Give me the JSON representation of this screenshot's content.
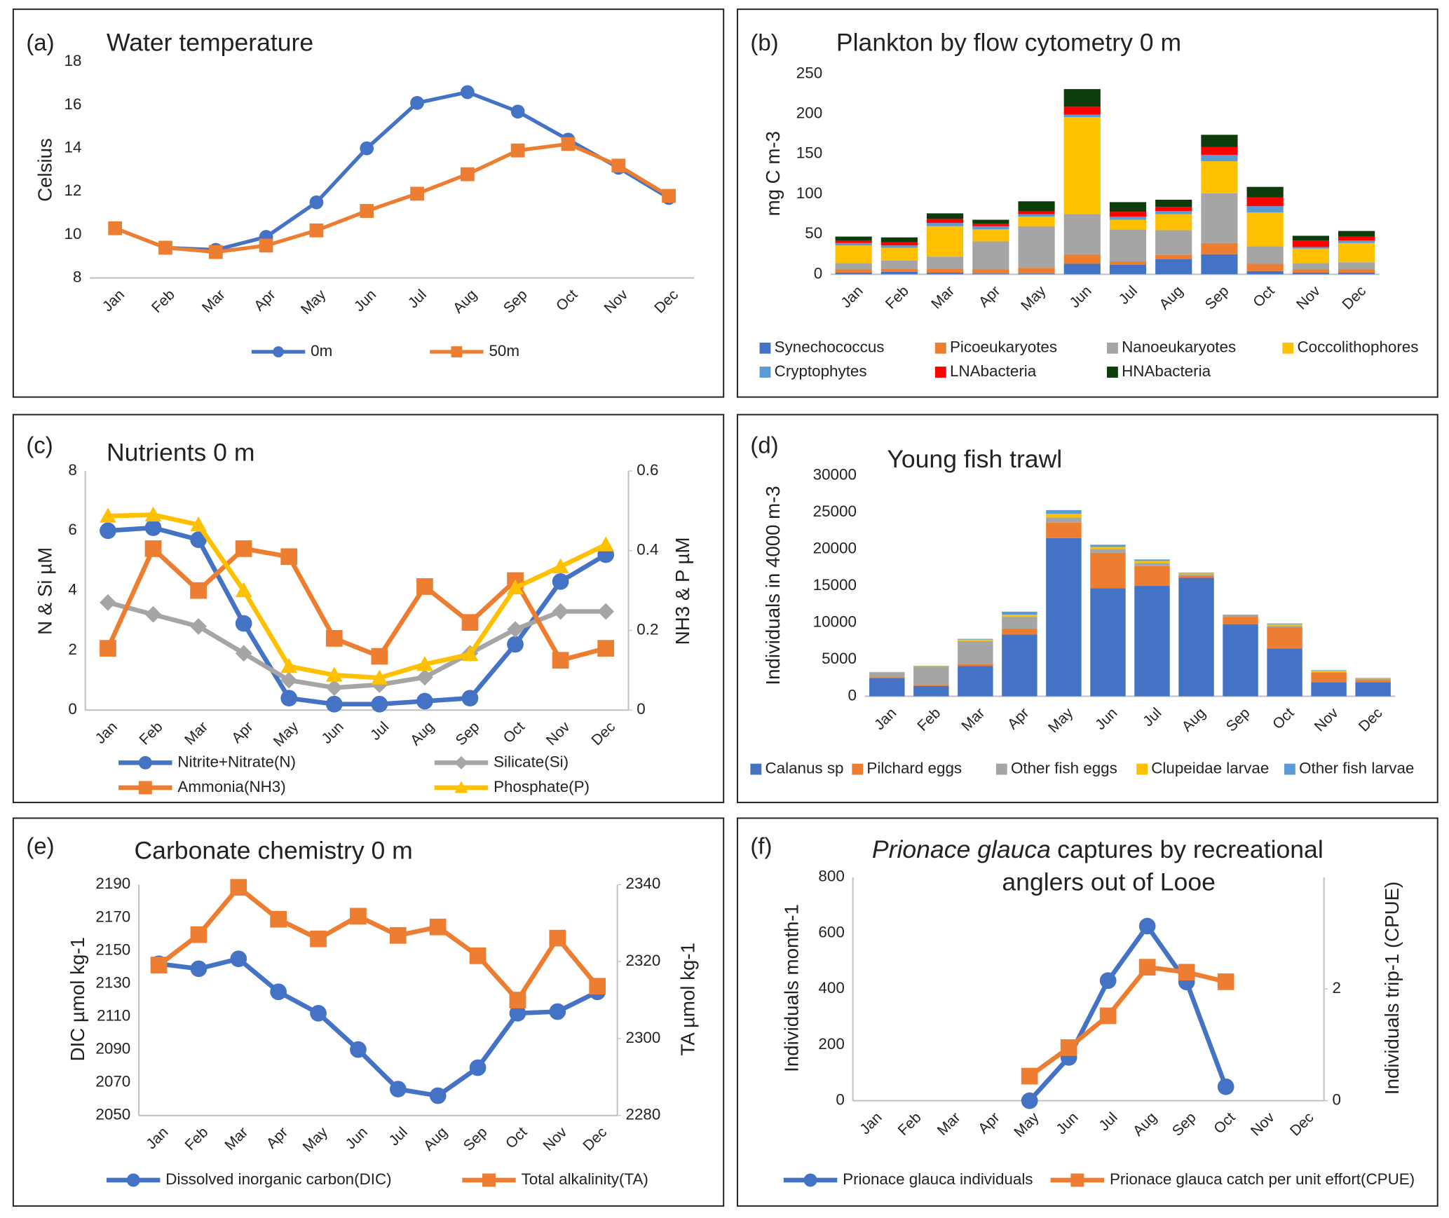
{
  "chart_data": [
    {
      "type": "line",
      "panel": "(a)",
      "title": "Water temperature",
      "y_label": "Celsius",
      "categories": [
        "Jan",
        "Feb",
        "Mar",
        "Apr",
        "May",
        "Jun",
        "Jul",
        "Aug",
        "Sep",
        "Oct",
        "Nov",
        "Dec"
      ],
      "ylim": [
        8,
        18
      ],
      "yticks": [
        8,
        10,
        12,
        14,
        16,
        18
      ],
      "grid": false,
      "series": [
        {
          "name": "0m",
          "color": "#4472c4",
          "marker": "circle",
          "values": [
            10.3,
            9.4,
            9.3,
            9.9,
            11.5,
            14.0,
            16.1,
            16.6,
            15.7,
            14.4,
            13.1,
            11.7
          ]
        },
        {
          "name": "50m",
          "color": "#ed7d31",
          "marker": "square",
          "values": [
            10.3,
            9.4,
            9.2,
            9.5,
            10.2,
            11.1,
            11.9,
            12.8,
            13.9,
            14.2,
            13.2,
            11.8
          ]
        }
      ]
    },
    {
      "type": "bar",
      "stacked": true,
      "panel": "(b)",
      "title": "Plankton by flow cytometry 0 m",
      "y_label": "mg C m-3",
      "categories": [
        "Jan",
        "Feb",
        "Mar",
        "Apr",
        "May",
        "Jun",
        "Jul",
        "Aug",
        "Sep",
        "Oct",
        "Nov",
        "Dec"
      ],
      "ylim": [
        0,
        250
      ],
      "yticks": [
        0,
        50,
        100,
        150,
        200,
        250
      ],
      "grid": false,
      "series": [
        {
          "name": "Synechococcus",
          "color": "#4472c4",
          "values": [
            2,
            3,
            2,
            1,
            1,
            13,
            12,
            19,
            25,
            4,
            2,
            2
          ]
        },
        {
          "name": "Picoeukaryotes",
          "color": "#ed7d31",
          "values": [
            4,
            4,
            5,
            5,
            7,
            12,
            4,
            5,
            14,
            9,
            4,
            4
          ]
        },
        {
          "name": "Nanoeukaryotes",
          "color": "#a5a5a5",
          "values": [
            8,
            10,
            15,
            35,
            52,
            50,
            40,
            31,
            62,
            22,
            8,
            9
          ]
        },
        {
          "name": "Coccolithophores",
          "color": "#ffc000",
          "values": [
            22,
            16,
            38,
            15,
            12,
            121,
            12,
            20,
            40,
            42,
            18,
            24
          ]
        },
        {
          "name": "Cryptophytes",
          "color": "#5b9bd5",
          "values": [
            3,
            3,
            4,
            4,
            3,
            3,
            4,
            4,
            8,
            8,
            2,
            3
          ]
        },
        {
          "name": "LNAbacteria",
          "color": "#ff0000",
          "values": [
            3,
            4,
            5,
            3,
            4,
            10,
            6,
            5,
            10,
            11,
            8,
            5
          ]
        },
        {
          "name": "HNAbacteria",
          "color": "#0c3b0c",
          "values": [
            5,
            6,
            7,
            5,
            12,
            22,
            12,
            9,
            15,
            13,
            6,
            7
          ]
        }
      ]
    },
    {
      "type": "line",
      "panel": "(c)",
      "title": "Nutrients 0 m",
      "y_label": "N & Si µM",
      "y2_label": "NH3 & P µM",
      "categories": [
        "Jan",
        "Feb",
        "Mar",
        "Apr",
        "May",
        "Jun",
        "Jul",
        "Aug",
        "Sep",
        "Oct",
        "Nov",
        "Dec"
      ],
      "ylim": [
        0,
        8
      ],
      "yticks": [
        0,
        2,
        4,
        6,
        8
      ],
      "y2lim": [
        0,
        0.6
      ],
      "y2ticks": [
        0,
        0.2,
        0.4,
        0.6
      ],
      "grid": false,
      "series": [
        {
          "name": "Nitrite+Nitrate(N)",
          "color": "#4472c4",
          "marker": "circle",
          "values": [
            6.0,
            6.1,
            5.7,
            2.9,
            0.4,
            0.2,
            0.2,
            0.3,
            0.4,
            2.2,
            4.3,
            5.2
          ]
        },
        {
          "name": "Silicate(Si)",
          "color": "#a5a5a5",
          "marker": "diamond",
          "values": [
            3.6,
            3.2,
            2.8,
            1.9,
            1.0,
            0.75,
            0.85,
            1.1,
            1.9,
            2.7,
            3.3,
            3.3
          ]
        },
        {
          "name": "Ammonia(NH3)",
          "color": "#ed7d31",
          "marker": "square",
          "axis": "y2",
          "values": [
            0.155,
            0.405,
            0.3,
            0.405,
            0.385,
            0.18,
            0.135,
            0.31,
            0.22,
            0.325,
            0.125,
            0.155
          ]
        },
        {
          "name": "Phosphate(P)",
          "color": "#ffc000",
          "marker": "triangle",
          "axis": "y2",
          "values": [
            0.487,
            0.49,
            0.465,
            0.3,
            0.11,
            0.088,
            0.081,
            0.115,
            0.14,
            0.307,
            0.36,
            0.415
          ]
        }
      ]
    },
    {
      "type": "bar",
      "stacked": true,
      "panel": "(d)",
      "title": "Young fish trawl",
      "y_label": "Individuals in 4000 m-3",
      "categories": [
        "Jan",
        "Feb",
        "Mar",
        "Apr",
        "May",
        "Jun",
        "Jul",
        "Aug",
        "Sep",
        "Oct",
        "Nov",
        "Dec"
      ],
      "ylim": [
        0,
        30000
      ],
      "yticks": [
        0,
        5000,
        10000,
        15000,
        20000,
        25000,
        30000
      ],
      "grid": false,
      "series": [
        {
          "name": "Calanus sp",
          "color": "#4472c4",
          "values": [
            2500,
            1400,
            4100,
            8400,
            21500,
            14700,
            15000,
            16100,
            9800,
            6500,
            1900,
            1900
          ]
        },
        {
          "name": "Pilchard eggs",
          "color": "#ed7d31",
          "values": [
            100,
            200,
            300,
            800,
            2100,
            4800,
            2700,
            300,
            1000,
            2900,
            1300,
            300
          ]
        },
        {
          "name": "Other fish eggs",
          "color": "#a5a5a5",
          "values": [
            600,
            2400,
            3100,
            1600,
            700,
            500,
            400,
            200,
            200,
            200,
            100,
            200
          ]
        },
        {
          "name": "Clupeidae larvae",
          "color": "#ffc000",
          "values": [
            50,
            100,
            200,
            300,
            500,
            300,
            300,
            100,
            50,
            200,
            200,
            50
          ]
        },
        {
          "name": "Other fish larvae",
          "color": "#5b9bd5",
          "values": [
            50,
            50,
            100,
            400,
            500,
            300,
            200,
            100,
            50,
            100,
            50,
            50
          ]
        }
      ]
    },
    {
      "type": "line",
      "panel": "(e)",
      "title": "Carbonate chemistry 0 m",
      "y_label": "DIC µmol kg-1",
      "y2_label": "TA µmol kg-1",
      "categories": [
        "Jan",
        "Feb",
        "Mar",
        "Apr",
        "May",
        "Jun",
        "Jul",
        "Aug",
        "Sep",
        "Oct",
        "Nov",
        "Dec"
      ],
      "ylim": [
        2050,
        2190
      ],
      "yticks": [
        2050,
        2070,
        2090,
        2110,
        2130,
        2150,
        2170,
        2190
      ],
      "y2lim": [
        2280,
        2340
      ],
      "y2ticks": [
        2280,
        2300,
        2320,
        2340
      ],
      "grid": false,
      "series": [
        {
          "name": "Dissolved inorganic carbon(DIC)",
          "color": "#4472c4",
          "marker": "circle",
          "values": [
            2142,
            2139,
            2145,
            2125,
            2112,
            2090,
            2066,
            2062,
            2079,
            2112,
            2113,
            2125
          ]
        },
        {
          "name": "Total alkalinity(TA)",
          "color": "#ed7d31",
          "marker": "square",
          "axis": "y2",
          "values": [
            2319.1,
            2327,
            2339.3,
            2331,
            2325.9,
            2331.8,
            2326.8,
            2329,
            2321.5,
            2310,
            2326.1,
            2313.6
          ]
        }
      ]
    },
    {
      "type": "line",
      "panel": "(f)",
      "title_italic": "Prionace glauca",
      "title_lines": [
        "captures by recreational",
        "anglers out of Looe"
      ],
      "y_label": "Individuals month-1",
      "y2_label": "Individuals trip-1 (CPUE)",
      "categories": [
        "Jan",
        "Feb",
        "Mar",
        "Apr",
        "May",
        "Jun",
        "Jul",
        "Aug",
        "Sep",
        "Oct",
        "Nov",
        "Dec"
      ],
      "ylim": [
        0,
        800
      ],
      "yticks": [
        0,
        200,
        400,
        600,
        800
      ],
      "y2lim": [
        0,
        4
      ],
      "y2ticks": [
        0,
        2
      ],
      "grid": false,
      "series": [
        {
          "name": "Prionace glauca individuals",
          "color": "#4472c4",
          "marker": "circle",
          "values": [
            null,
            null,
            null,
            null,
            0,
            155,
            430,
            625,
            425,
            50,
            null,
            null
          ]
        },
        {
          "name": "Prionace glauca catch per unit effort(CPUE)",
          "color": "#ed7d31",
          "marker": "square",
          "axis": "y2",
          "values": [
            null,
            null,
            null,
            null,
            0.44,
            0.95,
            1.52,
            2.39,
            2.3,
            2.13,
            null,
            null
          ]
        }
      ]
    }
  ]
}
